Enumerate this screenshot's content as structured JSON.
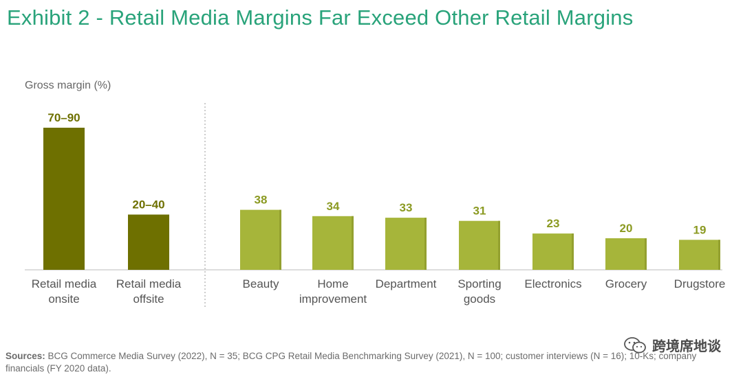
{
  "title": "Exhibit 2 - Retail Media Margins Far Exceed Other Retail Margins",
  "sources": {
    "label": "Sources:",
    "text": " BCG Commerce Media Survey (2022), N = 35; BCG CPG Retail Media Benchmarking Survey (2021), N = 100; customer interviews (N = 16); 10-Ks; company financials (FY 2020 data)."
  },
  "watermark": {
    "icon": "wechat-icon",
    "text": "跨境席地谈"
  },
  "colors": {
    "title": "#29a37a",
    "retail_media_bar": "#6e7000",
    "other_bar": "#a6b53a",
    "retail_media_label": "#6e7000",
    "other_label": "#8b9a22"
  },
  "chart_data": {
    "type": "bar",
    "ylabel": "Gross margin (%)",
    "ylim": [
      0,
      100
    ],
    "groups": [
      {
        "name": "retail-media",
        "bars": [
          {
            "category": [
              "Retail media",
              "onsite"
            ],
            "range": [
              70,
              90
            ],
            "value": 90,
            "label": "70–90"
          },
          {
            "category": [
              "Retail media",
              "offsite"
            ],
            "range": [
              20,
              40
            ],
            "value": 35,
            "label": "20–40"
          }
        ]
      },
      {
        "name": "other-retail",
        "bars": [
          {
            "category": [
              "Beauty"
            ],
            "value": 38,
            "label": "38"
          },
          {
            "category": [
              "Home",
              "improvement"
            ],
            "value": 34,
            "label": "34"
          },
          {
            "category": [
              "Department"
            ],
            "value": 33,
            "label": "33"
          },
          {
            "category": [
              "Sporting",
              "goods"
            ],
            "value": 31,
            "label": "31"
          },
          {
            "category": [
              "Electronics"
            ],
            "value": 23,
            "label": "23"
          },
          {
            "category": [
              "Grocery"
            ],
            "value": 20,
            "label": "20"
          },
          {
            "category": [
              "Drugstore"
            ],
            "value": 19,
            "label": "19"
          }
        ]
      }
    ],
    "grid": false,
    "legend": "none"
  }
}
